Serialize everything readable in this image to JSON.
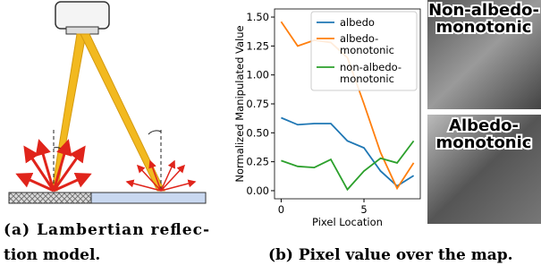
{
  "chart_data": {
    "type": "line",
    "xlabel": "Pixel Location",
    "ylabel": "Normalized Manipulated Value",
    "x": [
      0,
      1,
      2,
      3,
      4,
      5,
      6,
      7,
      8
    ],
    "series": [
      {
        "name": "albedo",
        "color": "#1f77b4",
        "values": [
          0.63,
          0.57,
          0.58,
          0.58,
          0.43,
          0.37,
          0.17,
          0.04,
          0.13
        ]
      },
      {
        "name": "albedo-\nmonotonic",
        "color": "#ff7f0e",
        "values": [
          1.46,
          1.25,
          1.3,
          1.28,
          1.15,
          0.75,
          0.33,
          0.02,
          0.24
        ]
      },
      {
        "name": "non-albedo-\nmonotonic",
        "color": "#2ca02c",
        "values": [
          0.26,
          0.21,
          0.2,
          0.27,
          0.01,
          0.17,
          0.28,
          0.24,
          0.43
        ]
      }
    ],
    "xlim": [
      -0.4,
      8.4
    ],
    "xticks": [
      0,
      5
    ],
    "ylim": [
      -0.07,
      1.57
    ],
    "yticks": [
      {
        "value": 0,
        "label": "0.00"
      },
      {
        "value": 0.25,
        "label": "0.25"
      },
      {
        "value": 0.5,
        "label": "0.50"
      },
      {
        "value": 0.75,
        "label": "0.75"
      },
      {
        "value": 1,
        "label": "1.00"
      },
      {
        "value": 1.25,
        "label": "1.25"
      },
      {
        "value": 1.5,
        "label": "1.50"
      }
    ],
    "legend": "upper right"
  },
  "photos": [
    {
      "label": "Non-albedo-\nmonotonic"
    },
    {
      "label": "Albedo-\nmonotonic"
    }
  ],
  "captions": {
    "a": [
      "(a) Lambertian reflec-",
      "tion model."
    ],
    "b": "(b) Pixel value over the map."
  }
}
